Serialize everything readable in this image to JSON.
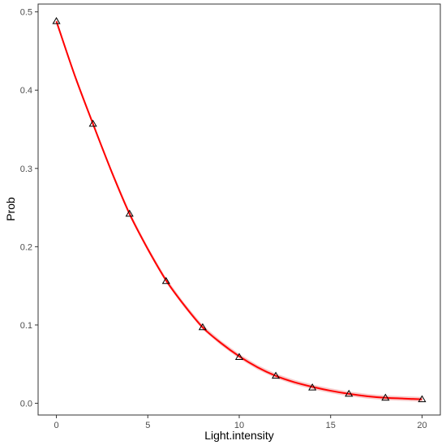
{
  "chart_data": {
    "type": "scatter",
    "title": "",
    "xlabel": "Light.intensity",
    "ylabel": "Prob",
    "xlim": [
      -1,
      21
    ],
    "ylim": [
      -0.015,
      0.51
    ],
    "x_ticks": [
      0,
      5,
      10,
      15,
      20
    ],
    "y_ticks": [
      0.0,
      0.1,
      0.2,
      0.3,
      0.4,
      0.5
    ],
    "x_tick_labels": [
      "0",
      "5",
      "10",
      "15",
      "20"
    ],
    "y_tick_labels": [
      "0.0",
      "0.1",
      "0.2",
      "0.3",
      "0.4",
      "0.5"
    ],
    "grid": false,
    "marker": "triangle-open",
    "points": {
      "x": [
        0,
        2,
        4,
        6,
        8,
        10,
        12,
        14,
        16,
        18,
        20
      ],
      "y": [
        0.488,
        0.357,
        0.242,
        0.156,
        0.097,
        0.059,
        0.035,
        0.02,
        0.012,
        0.007,
        0.005
      ]
    },
    "fit_line": {
      "color": "#ff0000",
      "x": [
        0,
        1,
        2,
        3,
        4,
        5,
        6,
        7,
        8,
        9,
        10,
        11,
        12,
        13,
        14,
        15,
        16,
        17,
        18,
        19,
        20
      ],
      "y": [
        0.488,
        0.419,
        0.357,
        0.297,
        0.242,
        0.197,
        0.157,
        0.125,
        0.097,
        0.077,
        0.06,
        0.046,
        0.035,
        0.027,
        0.021,
        0.016,
        0.012,
        0.009,
        0.007,
        0.006,
        0.005
      ]
    },
    "colors": {
      "line": "#ff0000",
      "ribbon": "#f4a6a6",
      "marker_stroke": "#000000",
      "axis": "#333333"
    }
  }
}
